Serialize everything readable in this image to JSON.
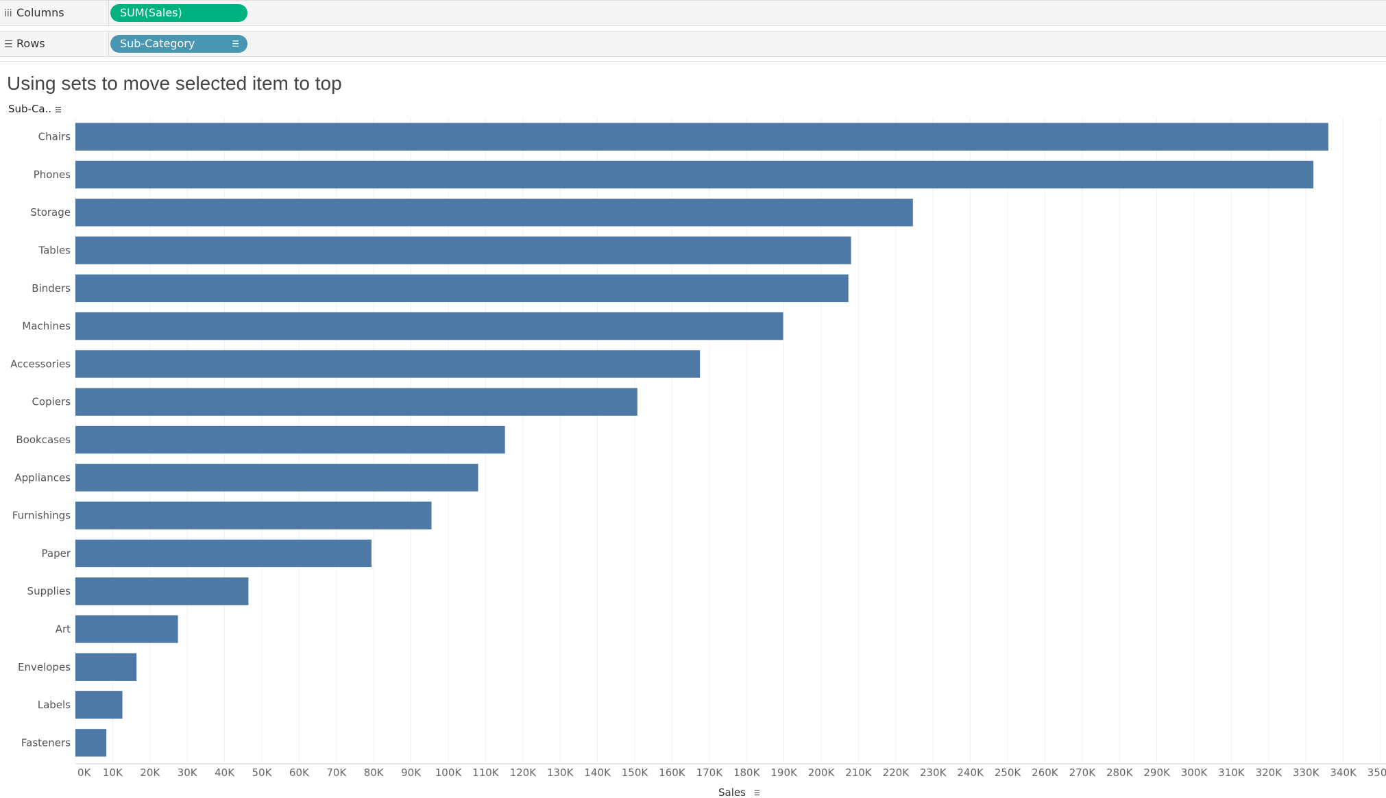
{
  "shelves": {
    "columns": {
      "label": "Columns",
      "icon": "columns-icon",
      "pill": "SUM(Sales)",
      "color": "#00b180"
    },
    "rows": {
      "label": "Rows",
      "icon": "rows-icon",
      "pill": "Sub-Category",
      "color": "#4996b2"
    }
  },
  "title": "Using sets to move selected item to top",
  "row_header": "Sub-Ca..",
  "chart_data": {
    "type": "bar",
    "orientation": "horizontal",
    "title": "Using sets to move selected item to top",
    "xlabel": "Sales",
    "ylabel": "Sub-Category",
    "xlim": [
      0,
      350000
    ],
    "grid": true,
    "bar_color": "#4e79a7",
    "categories": [
      "Chairs",
      "Phones",
      "Storage",
      "Tables",
      "Binders",
      "Machines",
      "Accessories",
      "Copiers",
      "Bookcases",
      "Appliances",
      "Furnishings",
      "Paper",
      "Supplies",
      "Art",
      "Envelopes",
      "Labels",
      "Fasteners"
    ],
    "values": [
      336000,
      332000,
      224600,
      208000,
      207300,
      189800,
      167500,
      150700,
      115200,
      108000,
      95500,
      79400,
      46400,
      27500,
      16400,
      12600,
      8300
    ],
    "x_ticks": [
      "0K",
      "10K",
      "20K",
      "30K",
      "40K",
      "50K",
      "60K",
      "70K",
      "80K",
      "90K",
      "100K",
      "110K",
      "120K",
      "130K",
      "140K",
      "150K",
      "160K",
      "170K",
      "180K",
      "190K",
      "200K",
      "210K",
      "220K",
      "230K",
      "240K",
      "250K",
      "260K",
      "270K",
      "280K",
      "290K",
      "300K",
      "310K",
      "320K",
      "330K",
      "340K",
      "350K"
    ]
  }
}
